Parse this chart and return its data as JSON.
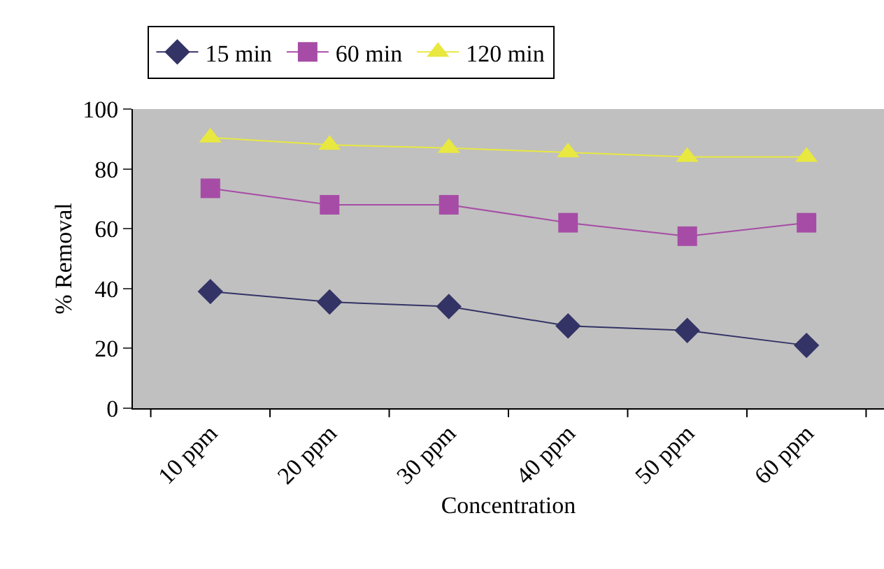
{
  "chart_data": {
    "type": "line",
    "xlabel": "Concentration",
    "ylabel": "% Removal",
    "categories": [
      "10 ppm",
      "20 ppm",
      "30 ppm",
      "40 ppm",
      "50 ppm",
      "60 ppm"
    ],
    "series": [
      {
        "name": "15 min",
        "color": "#333366",
        "marker": "diamond",
        "values": [
          39,
          35.5,
          34,
          27.5,
          26,
          21
        ]
      },
      {
        "name": "60 min",
        "color": "#a64ca6",
        "marker": "square",
        "values": [
          73.5,
          68,
          68,
          62,
          57.5,
          62
        ]
      },
      {
        "name": "120 min",
        "color": "#e8e840",
        "marker": "triangle",
        "values": [
          90.5,
          88,
          87,
          85.5,
          84,
          84
        ]
      }
    ],
    "ylim": [
      0,
      100
    ],
    "yticks": [
      0,
      20,
      40,
      60,
      80,
      100
    ],
    "grid": false,
    "legend": "top"
  }
}
